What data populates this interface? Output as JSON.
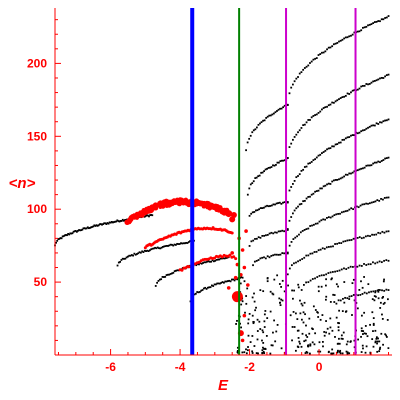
{
  "chart_data": {
    "type": "scatter",
    "xlabel": "E",
    "ylabel": "<n>",
    "xlim": [
      -7.6,
      2.1
    ],
    "ylim": [
      0,
      238
    ],
    "x_ticks": [
      -6,
      -4,
      -2,
      0
    ],
    "x_tick_labels": [
      "-6",
      "-4",
      "-2",
      "0"
    ],
    "y_ticks": [
      50,
      100,
      150,
      200
    ],
    "y_tick_labels": [
      "50",
      "100",
      "150",
      "200"
    ],
    "grid": false,
    "colors": {
      "axis": "#ff0000",
      "black_points": "#000000",
      "red_points": "#ff0000",
      "line_blue": "#0000ff",
      "line_green": "#008000",
      "line_magenta": "#cc00cc"
    },
    "vertical_lines": [
      {
        "x": -3.65,
        "color": "#0000ff",
        "width": 4
      },
      {
        "x": -2.3,
        "color": "#008000",
        "width": 2
      },
      {
        "x": -0.95,
        "color": "#cc00cc",
        "width": 2
      },
      {
        "x": 1.05,
        "color": "#cc00cc",
        "width": 2
      }
    ],
    "black_bands": [
      {
        "x0": -7.6,
        "y0": 75,
        "x1": -4.8,
        "y1": 96,
        "n": 90
      },
      {
        "x0": -5.8,
        "y0": 61,
        "x1": -3.6,
        "y1": 78,
        "n": 60
      },
      {
        "x0": -4.7,
        "y0": 47,
        "x1": -2.6,
        "y1": 67,
        "n": 55
      },
      {
        "x0": -3.7,
        "y0": 37,
        "x1": -2.2,
        "y1": 53,
        "n": 40
      },
      {
        "x0": -2.1,
        "y0": 140,
        "x1": -0.9,
        "y1": 172,
        "n": 28
      },
      {
        "x0": -0.9,
        "y0": 172,
        "x1": 2.0,
        "y1": 232,
        "n": 60
      },
      {
        "x0": -2.05,
        "y0": 110,
        "x1": -0.9,
        "y1": 135,
        "n": 28
      },
      {
        "x0": -0.9,
        "y0": 135,
        "x1": 2.0,
        "y1": 192,
        "n": 60
      },
      {
        "x0": -2.0,
        "y0": 95,
        "x1": -0.9,
        "y1": 105,
        "n": 25
      },
      {
        "x0": -0.9,
        "y0": 105,
        "x1": 2.0,
        "y1": 162,
        "n": 60
      },
      {
        "x0": -2.0,
        "y0": 75,
        "x1": -0.9,
        "y1": 86,
        "n": 22
      },
      {
        "x0": -0.9,
        "y0": 86,
        "x1": 2.0,
        "y1": 135,
        "n": 60
      },
      {
        "x0": -1.9,
        "y0": 62,
        "x1": -0.9,
        "y1": 70,
        "n": 20
      },
      {
        "x0": -0.9,
        "y0": 70,
        "x1": 2.0,
        "y1": 108,
        "n": 55
      },
      {
        "x0": -0.9,
        "y0": 55,
        "x1": 2.0,
        "y1": 85,
        "n": 50
      },
      {
        "x0": -0.5,
        "y0": 45,
        "x1": 2.0,
        "y1": 65,
        "n": 40
      },
      {
        "x0": 0.5,
        "y0": 35,
        "x1": 2.0,
        "y1": 45,
        "n": 25
      }
    ],
    "black_cloud": {
      "x0": -2.4,
      "x1": 2.0,
      "y0": 1,
      "y1": 55,
      "n": 320
    },
    "red_arcs": [
      {
        "x0": -5.5,
        "x1": -2.65,
        "ypeak": 105,
        "xpeak": -4.0,
        "yend": 98,
        "ystart": 92,
        "n": 180,
        "dense": true
      },
      {
        "x0": -5.0,
        "x1": -2.5,
        "ypeak": 87,
        "xpeak": -3.2,
        "yend": 84,
        "ystart": 74,
        "n": 60,
        "dense": false
      },
      {
        "x0": -4.0,
        "x1": -2.4,
        "ypeak": 68,
        "xpeak": -2.6,
        "yend": 66,
        "ystart": 58,
        "n": 30,
        "dense": false
      }
    ],
    "red_big_points": [
      {
        "x": -2.35,
        "y": 40,
        "r": 5.5
      },
      {
        "x": -2.6,
        "y": 97,
        "r": 3.5
      },
      {
        "x": -2.45,
        "y": 96,
        "r": 3.0
      },
      {
        "x": -2.5,
        "y": 93,
        "r": 3.0
      },
      {
        "x": -2.25,
        "y": 15,
        "r": 3.0
      }
    ],
    "red_scatter": [
      {
        "x": -2.3,
        "y": 80
      },
      {
        "x": -2.2,
        "y": 72
      },
      {
        "x": -2.15,
        "y": 60
      },
      {
        "x": -2.25,
        "y": 55
      },
      {
        "x": -2.5,
        "y": 70
      },
      {
        "x": -2.1,
        "y": 85
      },
      {
        "x": -2.35,
        "y": 62
      },
      {
        "x": -2.05,
        "y": 48
      },
      {
        "x": -2.4,
        "y": 53
      },
      {
        "x": -2.6,
        "y": 46
      },
      {
        "x": -2.2,
        "y": 10
      },
      {
        "x": -2.15,
        "y": 27
      }
    ]
  }
}
